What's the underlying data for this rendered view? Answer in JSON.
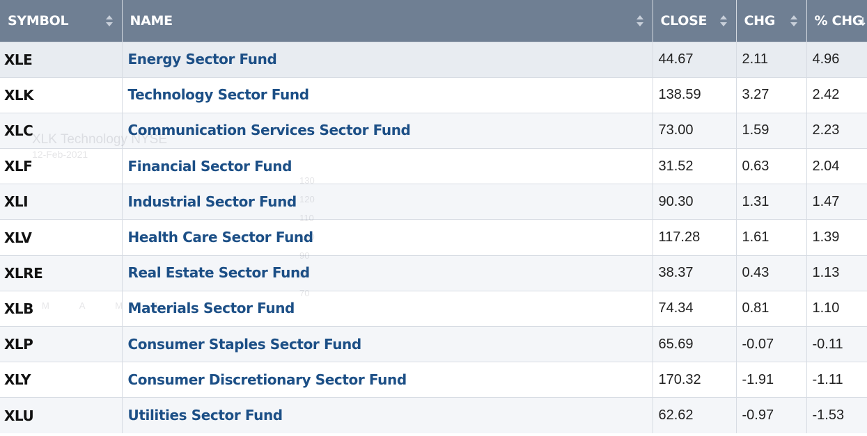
{
  "columns": [
    {
      "label": "SYMBOL"
    },
    {
      "label": "NAME"
    },
    {
      "label": "CLOSE"
    },
    {
      "label": "CHG"
    },
    {
      "label": "% CHG"
    }
  ],
  "rows": [
    {
      "symbol": "XLE",
      "name": "Energy Sector Fund",
      "close": "44.67",
      "chg": "2.11",
      "pct": "4.96"
    },
    {
      "symbol": "XLK",
      "name": "Technology Sector Fund",
      "close": "138.59",
      "chg": "3.27",
      "pct": "2.42"
    },
    {
      "symbol": "XLC",
      "name": "Communication Services Sector Fund",
      "close": "73.00",
      "chg": "1.59",
      "pct": "2.23"
    },
    {
      "symbol": "XLF",
      "name": "Financial Sector Fund",
      "close": "31.52",
      "chg": "0.63",
      "pct": "2.04"
    },
    {
      "symbol": "XLI",
      "name": "Industrial Sector Fund",
      "close": "90.30",
      "chg": "1.31",
      "pct": "1.47"
    },
    {
      "symbol": "XLV",
      "name": "Health Care Sector Fund",
      "close": "117.28",
      "chg": "1.61",
      "pct": "1.39"
    },
    {
      "symbol": "XLRE",
      "name": "Real Estate Sector Fund",
      "close": "38.37",
      "chg": "0.43",
      "pct": "1.13"
    },
    {
      "symbol": "XLB",
      "name": "Materials Sector Fund",
      "close": "74.34",
      "chg": "0.81",
      "pct": "1.10"
    },
    {
      "symbol": "XLP",
      "name": "Consumer Staples Sector Fund",
      "close": "65.69",
      "chg": "-0.07",
      "pct": "-0.11"
    },
    {
      "symbol": "XLY",
      "name": "Consumer Discretionary Sector Fund",
      "close": "170.32",
      "chg": "-1.91",
      "pct": "-1.11"
    },
    {
      "symbol": "XLU",
      "name": "Utilities Sector Fund",
      "close": "62.62",
      "chg": "-0.97",
      "pct": "-1.53"
    }
  ],
  "watermark": {
    "title": "XLK Technology NYSE",
    "date": "12-Feb-2021",
    "axis": [
      "130",
      "120",
      "110",
      "100",
      "90",
      "80",
      "70"
    ],
    "months": "M A M J"
  },
  "colors": {
    "header_bg": "#6f7f93",
    "link": "#1c4f86",
    "row_alt": "#f4f6f9"
  }
}
